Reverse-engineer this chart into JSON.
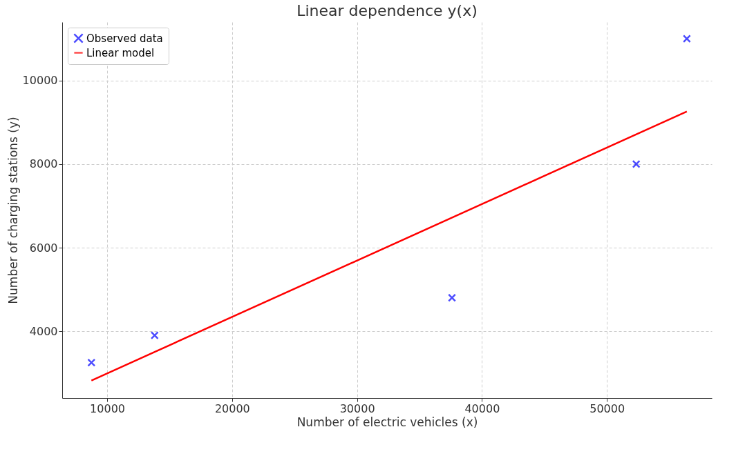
{
  "chart_data": {
    "type": "scatter",
    "title": "Linear dependence y(x)",
    "xlabel": "Number of electric vehicles (x)",
    "ylabel": "Number of charging stations (y)",
    "xlim": [
      6400,
      58400
    ],
    "ylim": [
      2400,
      11400
    ],
    "xticks": [
      10000,
      20000,
      30000,
      40000,
      50000
    ],
    "yticks": [
      4000,
      6000,
      8000,
      10000
    ],
    "grid": true,
    "legend": "top left",
    "series": [
      {
        "name": "Observed data",
        "color": "#0000ff",
        "marker": "cross",
        "x": [
          8740,
          13800,
          37600,
          52350,
          56400
        ],
        "values": [
          3250,
          3900,
          4800,
          8000,
          11000
        ]
      },
      {
        "name": "Linear model",
        "type": "line",
        "marker": "none",
        "color": "#ff0000",
        "x": [
          8740,
          56400
        ],
        "values": [
          2820,
          9260
        ]
      }
    ]
  }
}
